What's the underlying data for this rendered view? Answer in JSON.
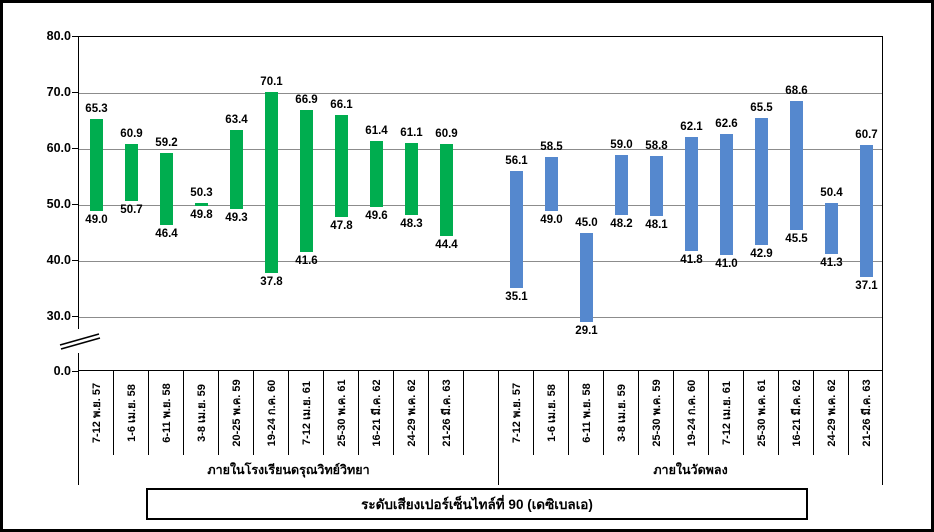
{
  "chart_data": {
    "type": "bar",
    "subtype": "floating-range-bar",
    "title": "ระดับเสียงเปอร์เซ็นไทล์ที่ 90 (เดซิเบลเอ)",
    "xlabel": "",
    "ylabel": "",
    "ylim": [
      0,
      80
    ],
    "yticks": [
      80.0,
      70.0,
      60.0,
      50.0,
      40.0,
      30.0,
      0.0
    ],
    "axis_break_between": [
      0,
      30
    ],
    "grid": true,
    "grid_color": "#8C8C8C",
    "groups": [
      {
        "label": "ภายในโรงเรียนดรุณวิทย์วิทยา",
        "color": "#00AD4F",
        "bars": [
          {
            "category": "7-12 พ.ย. 57",
            "low": 49.0,
            "high": 65.3
          },
          {
            "category": "1-6 เม.ย. 58",
            "low": 50.7,
            "high": 60.9
          },
          {
            "category": "6-11 พ.ย. 58",
            "low": 46.4,
            "high": 59.2
          },
          {
            "category": "3-8 เม.ย. 59",
            "low": 49.8,
            "high": 50.3
          },
          {
            "category": "20-25 พ.ค. 59",
            "low": 49.3,
            "high": 63.4
          },
          {
            "category": "19-24 ก.ค. 60",
            "low": 37.8,
            "high": 70.1
          },
          {
            "category": "7-12 เม.ย. 61",
            "low": 41.6,
            "high": 66.9
          },
          {
            "category": "25-30 พ.ค. 61",
            "low": 47.8,
            "high": 66.1
          },
          {
            "category": "16-21 มี.ค. 62",
            "low": 49.6,
            "high": 61.4
          },
          {
            "category": "24-29 พ.ค. 62",
            "low": 48.3,
            "high": 61.1
          },
          {
            "category": "21-26 มี.ค. 63",
            "low": 44.4,
            "high": 60.9
          }
        ]
      },
      {
        "label": "ภายในวัดพลง",
        "color": "#5588CE",
        "bars": [
          {
            "category": "7-12 พ.ย. 57",
            "low": 35.1,
            "high": 56.1
          },
          {
            "category": "1-6 เม.ย. 58",
            "low": 49.0,
            "high": 58.5
          },
          {
            "category": "6-11 พ.ย. 58",
            "low": 29.1,
            "high": 45.0
          },
          {
            "category": "3-8 เม.ย. 59",
            "low": 48.2,
            "high": 59.0
          },
          {
            "category": "25-30 พ.ค. 59",
            "low": 48.1,
            "high": 58.8
          },
          {
            "category": "19-24 ก.ค. 60",
            "low": 41.8,
            "high": 62.1
          },
          {
            "category": "7-12 เม.ย. 61",
            "low": 41.0,
            "high": 62.6
          },
          {
            "category": "25-30 พ.ค. 61",
            "low": 42.9,
            "high": 65.5
          },
          {
            "category": "16-21 มี.ค. 62",
            "low": 45.5,
            "high": 68.6
          },
          {
            "category": "24-29 พ.ค. 62",
            "low": 41.3,
            "high": 50.4
          },
          {
            "category": "21-26 มี.ค. 63",
            "low": 37.1,
            "high": 60.7
          }
        ]
      }
    ]
  }
}
